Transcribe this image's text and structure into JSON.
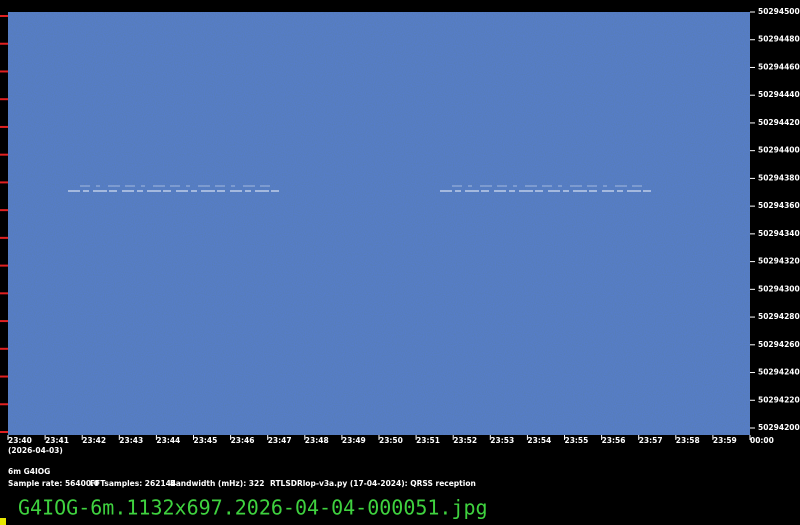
{
  "chart_data": {
    "type": "waterfall",
    "title": "6m G4IOG",
    "date_label": "(2026-04-03)",
    "annotations": [
      "Sample rate: 56400.0",
      "FFTsamples: 262144",
      "Bandwidth (mHz): 322",
      "RTLSDRlop-v3a.py (17-04-2024): QRSS reception"
    ],
    "filename": "G4IOG-6m.1132x697.2026-04-04-000051.jpg",
    "categories": [
      "23:40",
      "23:41",
      "23:42",
      "23:43",
      "23:44",
      "23:45",
      "23:46",
      "23:47",
      "23:48",
      "23:49",
      "23:50",
      "23:51",
      "23:52",
      "23:53",
      "23:54",
      "23:55",
      "23:56",
      "23:57",
      "23:58",
      "23:59",
      "00:00"
    ],
    "ylim": [
      50294200,
      50294500
    ],
    "yticks": [
      50294200,
      50294220,
      50294240,
      50294260,
      50294280,
      50294300,
      50294320,
      50294340,
      50294360,
      50294380,
      50294400,
      50294420,
      50294440,
      50294460,
      50294480,
      50294500
    ]
  }
}
